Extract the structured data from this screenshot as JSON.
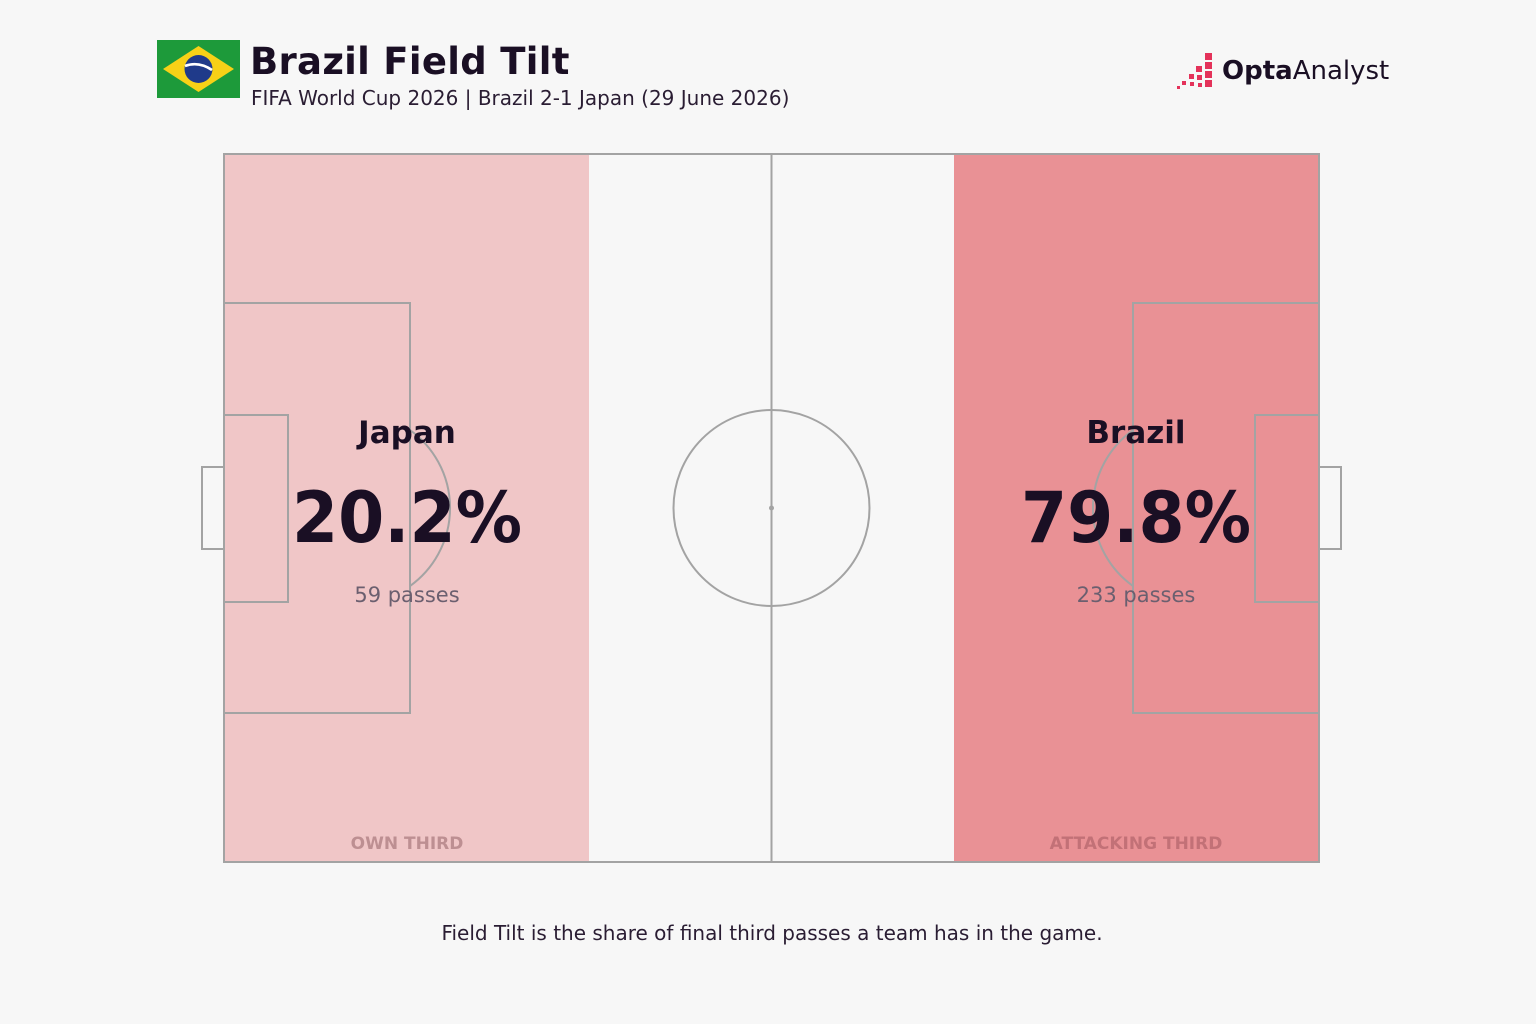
{
  "header": {
    "title": "Brazil Field Tilt",
    "subtitle": "FIFA World Cup 2026 | Brazil 2-1 Japan (29  June 2026)",
    "flag_icon": "brazil-flag-icon"
  },
  "brand": {
    "name_bold": "Opta",
    "name_regular": "Analyst",
    "icon": "opta-analyst-logo-icon"
  },
  "colors": {
    "background": "#f7f7f7",
    "own_third": "#f0c6c7",
    "attacking_third": "#e99195",
    "lines": "#a3a3a3",
    "text_dark": "#1a0f24",
    "text_muted": "#6b5f6f",
    "zone_label": "#bd8f92",
    "zone_label_attacking": "#c27177"
  },
  "chart_data": {
    "type": "pitch",
    "metric": "Field Tilt",
    "teams": [
      {
        "name": "Japan",
        "share_pct": 20.2,
        "share_label": "20.2%",
        "passes": 59,
        "passes_label": "59 passes",
        "zone": "OWN THIRD"
      },
      {
        "name": "Brazil",
        "share_pct": 79.8,
        "share_label": "79.8%",
        "passes": 233,
        "passes_label": "233 passes",
        "zone": "ATTACKING THIRD"
      }
    ]
  },
  "footer": {
    "caption": "Field Tilt is the share of final third passes a team has in the game."
  }
}
